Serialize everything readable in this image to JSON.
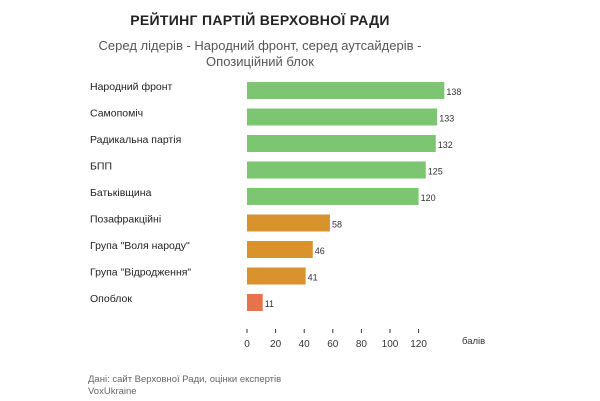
{
  "header": {
    "title": "РЕЙТИНГ ПАРТІЙ ВЕРХОВНОЇ РАДИ",
    "subtitle": "Серед лідерів - Народний фронт, серед аутсайдерів - Опозиційний блок"
  },
  "source": {
    "line1": "Дані: сайт Верховної Ради, оцінки експертів",
    "line2": "VoxUkraine"
  },
  "colors": {
    "green": "#7dc671",
    "orange": "#d9922c",
    "red": "#e8734a"
  },
  "chart_data": {
    "type": "bar",
    "orientation": "horizontal",
    "categories": [
      "Народний фронт",
      "Самопоміч",
      "Радикальна партія",
      "БПП",
      "Батьківщина",
      "Позафракційні",
      "Група \"Воля народу\"",
      "Група \"Відродження\"",
      "Опоблок"
    ],
    "values": [
      138,
      133,
      132,
      125,
      120,
      58,
      46,
      41,
      11
    ],
    "bar_colors": [
      "green",
      "green",
      "green",
      "green",
      "green",
      "orange",
      "orange",
      "orange",
      "red"
    ],
    "xlim": [
      0,
      140
    ],
    "xticks": [
      0,
      20,
      40,
      60,
      80,
      100,
      120
    ],
    "x_unit_label": "балів",
    "grid": false
  }
}
